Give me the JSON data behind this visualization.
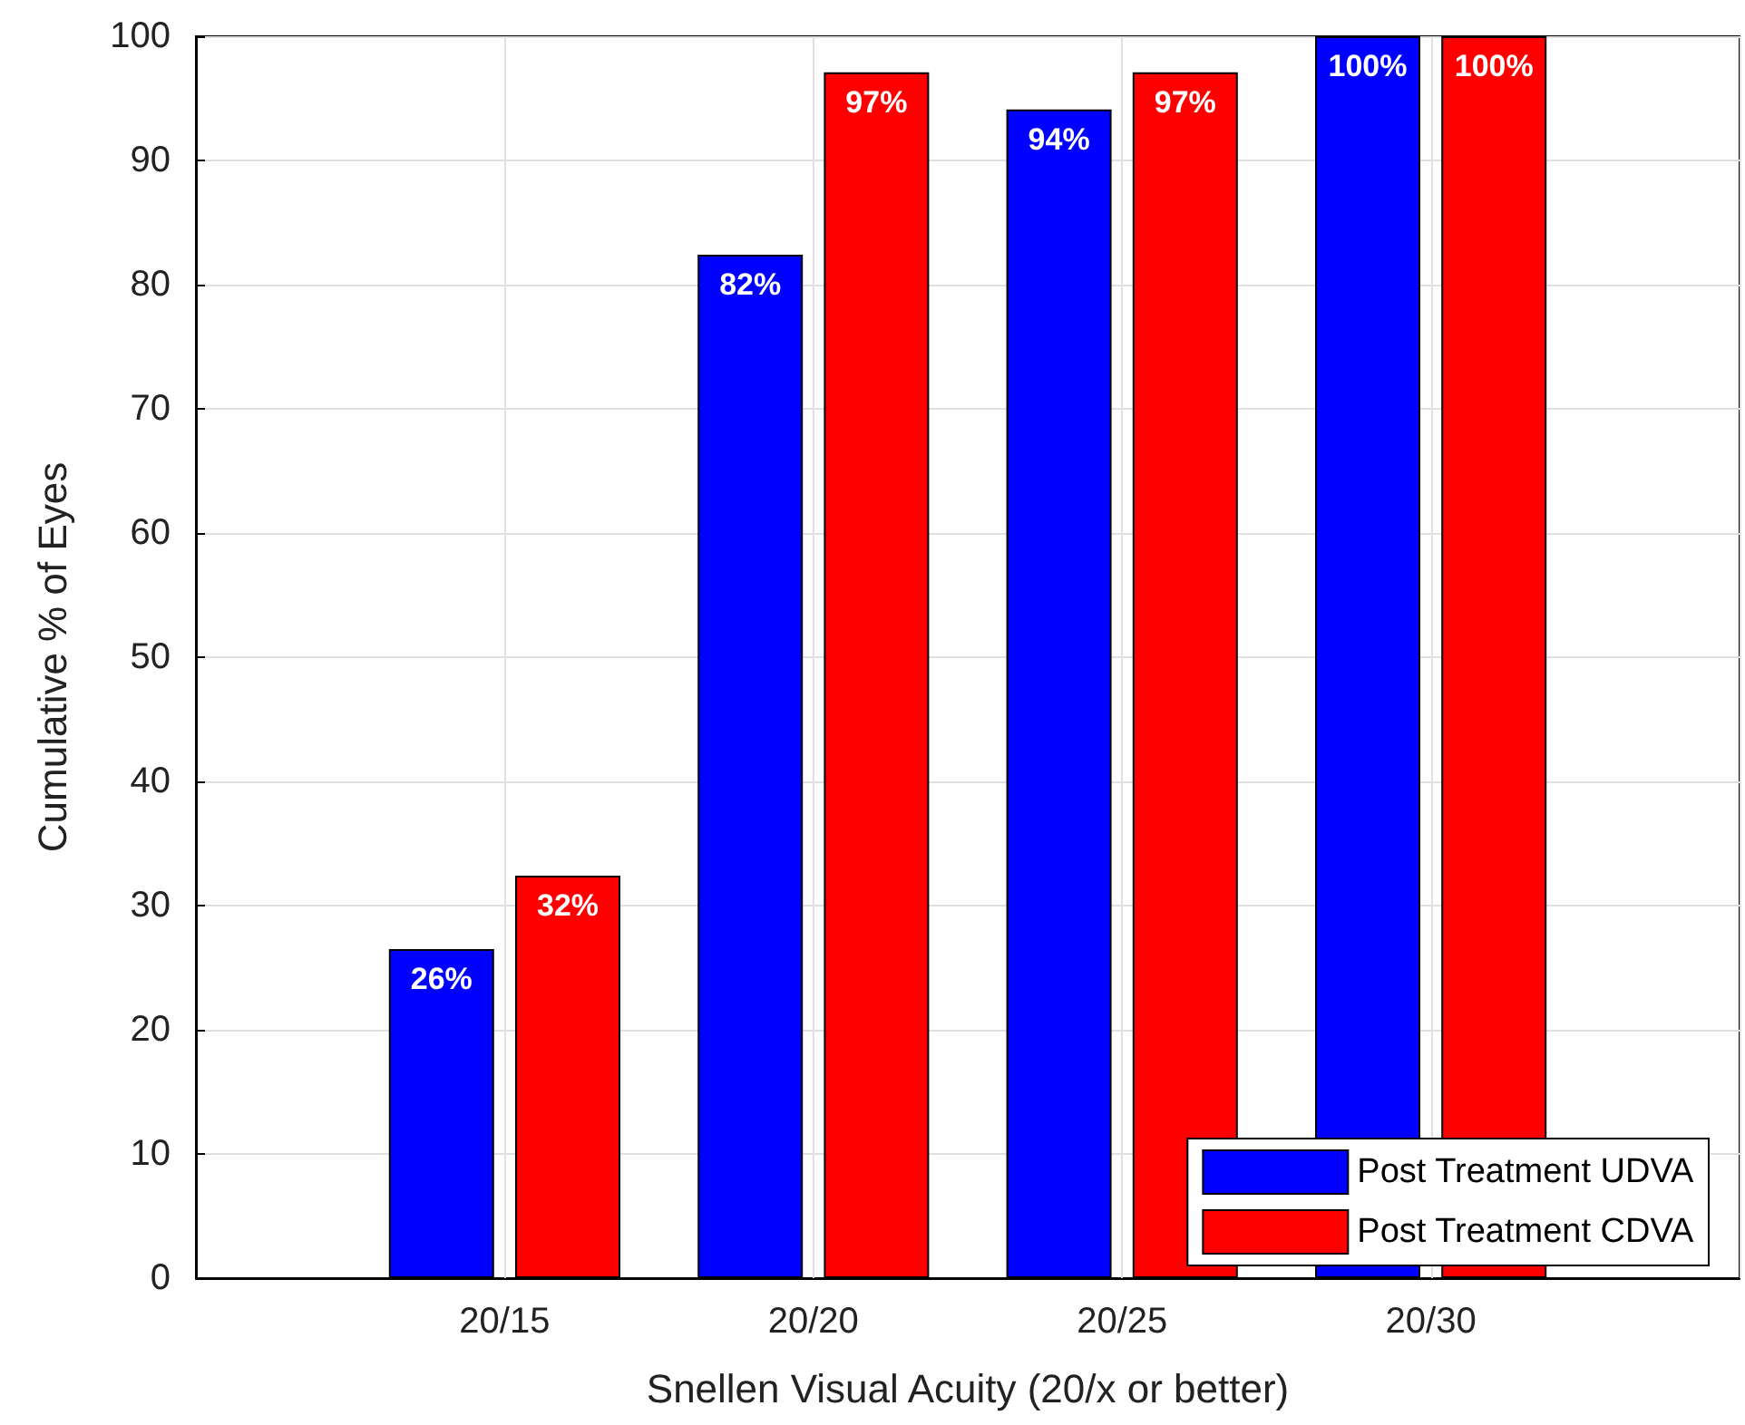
{
  "chart_data": {
    "type": "bar",
    "xlabel": "Snellen Visual Acuity (20/x or better)",
    "ylabel": "Cumulative % of Eyes",
    "categories": [
      null,
      "20/15",
      "20/20",
      "20/25",
      "20/30",
      null
    ],
    "series": [
      {
        "name": "Post Treatment UDVA",
        "color": "#0000ff",
        "values": [
          null,
          26.5,
          82.4,
          94.1,
          100,
          null
        ],
        "value_labels": [
          null,
          "26%",
          "82%",
          "94%",
          "100%",
          null
        ]
      },
      {
        "name": "Post Treatment CDVA",
        "color": "#ff0000",
        "values": [
          null,
          32.4,
          97.1,
          97.1,
          100,
          null
        ],
        "value_labels": [
          null,
          "32%",
          "97%",
          "97%",
          "100%",
          null
        ]
      }
    ],
    "ylim": [
      0,
      100
    ],
    "yticks": [
      0,
      10,
      20,
      30,
      40,
      50,
      60,
      70,
      80,
      90,
      100
    ],
    "grid": true,
    "legend": "bottom right"
  }
}
